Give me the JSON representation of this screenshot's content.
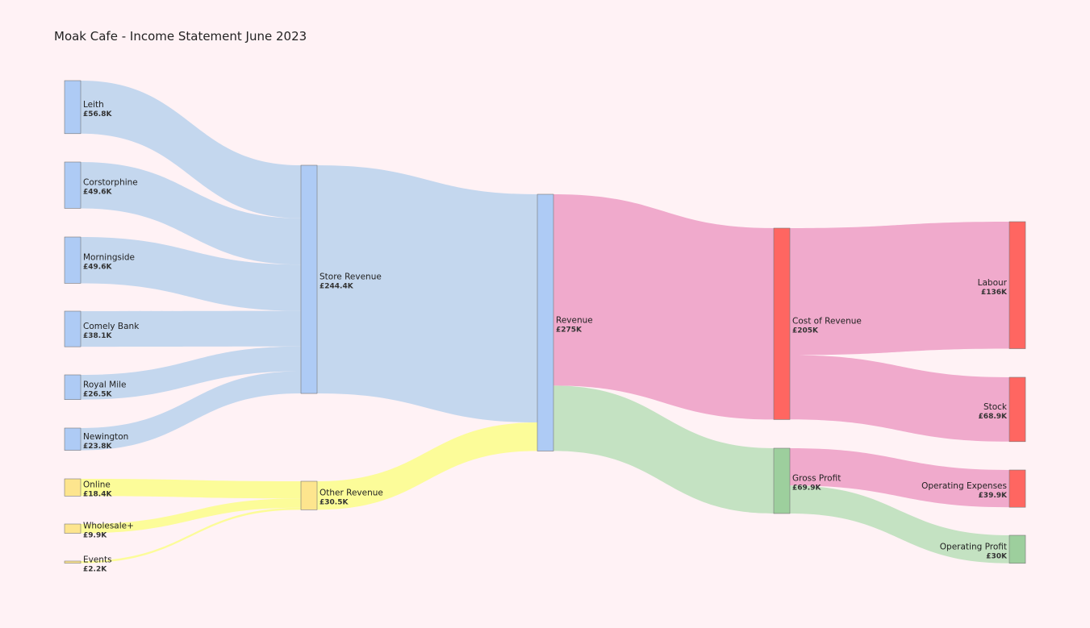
{
  "title": "Moak Cafe - Income Statement June 2023",
  "colors": {
    "background": "#fff2f5",
    "node_blue": "#aecbf5",
    "node_yellow": "#fde58e",
    "node_red": "#ff6661",
    "node_green": "#9dcf9d",
    "link_blue": "#c4d7ee",
    "link_yellow": "#fcfc99",
    "link_pink": "#f0aacc",
    "link_green": "#c4e2c2"
  },
  "chart_data": {
    "type": "sankey",
    "title": "Moak Cafe - Income Statement June 2023",
    "nodes": [
      {
        "id": "leith",
        "label": "Leith",
        "value_label": "£56.8K",
        "value": 56.8,
        "column": 0,
        "color": "node_blue"
      },
      {
        "id": "corstorphine",
        "label": "Corstorphine",
        "value_label": "£49.6K",
        "value": 49.6,
        "column": 0,
        "color": "node_blue"
      },
      {
        "id": "morningside",
        "label": "Morningside",
        "value_label": "£49.6K",
        "value": 49.6,
        "column": 0,
        "color": "node_blue"
      },
      {
        "id": "comely_bank",
        "label": "Comely Bank",
        "value_label": "£38.1K",
        "value": 38.1,
        "column": 0,
        "color": "node_blue"
      },
      {
        "id": "royal_mile",
        "label": "Royal Mile",
        "value_label": "£26.5K",
        "value": 26.5,
        "column": 0,
        "color": "node_blue"
      },
      {
        "id": "newington",
        "label": "Newington",
        "value_label": "£23.8K",
        "value": 23.8,
        "column": 0,
        "color": "node_blue"
      },
      {
        "id": "online",
        "label": "Online",
        "value_label": "£18.4K",
        "value": 18.4,
        "column": 0,
        "color": "node_yellow"
      },
      {
        "id": "wholesale",
        "label": "Wholesale+",
        "value_label": "£9.9K",
        "value": 9.9,
        "column": 0,
        "color": "node_yellow"
      },
      {
        "id": "events",
        "label": "Events",
        "value_label": "£2.2K",
        "value": 2.2,
        "column": 0,
        "color": "node_yellow"
      },
      {
        "id": "store_revenue",
        "label": "Store Revenue",
        "value_label": "£244.4K",
        "value": 244.4,
        "column": 1,
        "color": "node_blue"
      },
      {
        "id": "other_revenue",
        "label": "Other Revenue",
        "value_label": "£30.5K",
        "value": 30.5,
        "column": 1,
        "color": "node_yellow"
      },
      {
        "id": "revenue",
        "label": "Revenue",
        "value_label": "£275K",
        "value": 275,
        "column": 2,
        "color": "node_blue"
      },
      {
        "id": "cost_of_revenue",
        "label": "Cost of Revenue",
        "value_label": "£205K",
        "value": 205,
        "column": 3,
        "color": "node_red"
      },
      {
        "id": "gross_profit",
        "label": "Gross Profit",
        "value_label": "£69.9K",
        "value": 69.9,
        "column": 3,
        "color": "node_green"
      },
      {
        "id": "labour",
        "label": "Labour",
        "value_label": "£136K",
        "value": 136,
        "column": 4,
        "color": "node_red"
      },
      {
        "id": "stock",
        "label": "Stock",
        "value_label": "£68.9K",
        "value": 68.9,
        "column": 4,
        "color": "node_red"
      },
      {
        "id": "operating_expenses",
        "label": "Operating Expenses",
        "value_label": "£39.9K",
        "value": 39.9,
        "column": 4,
        "color": "node_red"
      },
      {
        "id": "operating_profit",
        "label": "Operating Profit",
        "value_label": "£30K",
        "value": 30,
        "column": 4,
        "color": "node_green"
      }
    ],
    "links": [
      {
        "source": "leith",
        "target": "store_revenue",
        "value": 56.8,
        "color": "link_blue"
      },
      {
        "source": "corstorphine",
        "target": "store_revenue",
        "value": 49.6,
        "color": "link_blue"
      },
      {
        "source": "morningside",
        "target": "store_revenue",
        "value": 49.6,
        "color": "link_blue"
      },
      {
        "source": "comely_bank",
        "target": "store_revenue",
        "value": 38.1,
        "color": "link_blue"
      },
      {
        "source": "royal_mile",
        "target": "store_revenue",
        "value": 26.5,
        "color": "link_blue"
      },
      {
        "source": "newington",
        "target": "store_revenue",
        "value": 23.8,
        "color": "link_blue"
      },
      {
        "source": "online",
        "target": "other_revenue",
        "value": 18.4,
        "color": "link_yellow"
      },
      {
        "source": "wholesale",
        "target": "other_revenue",
        "value": 9.9,
        "color": "link_yellow"
      },
      {
        "source": "events",
        "target": "other_revenue",
        "value": 2.2,
        "color": "link_yellow"
      },
      {
        "source": "store_revenue",
        "target": "revenue",
        "value": 244.4,
        "color": "link_blue"
      },
      {
        "source": "other_revenue",
        "target": "revenue",
        "value": 30.5,
        "color": "link_yellow"
      },
      {
        "source": "revenue",
        "target": "cost_of_revenue",
        "value": 205,
        "color": "link_pink"
      },
      {
        "source": "revenue",
        "target": "gross_profit",
        "value": 69.9,
        "color": "link_green"
      },
      {
        "source": "cost_of_revenue",
        "target": "labour",
        "value": 136,
        "color": "link_pink"
      },
      {
        "source": "cost_of_revenue",
        "target": "stock",
        "value": 68.9,
        "color": "link_pink"
      },
      {
        "source": "gross_profit",
        "target": "operating_expenses",
        "value": 39.9,
        "color": "link_pink"
      },
      {
        "source": "gross_profit",
        "target": "operating_profit",
        "value": 30,
        "color": "link_green"
      }
    ]
  }
}
